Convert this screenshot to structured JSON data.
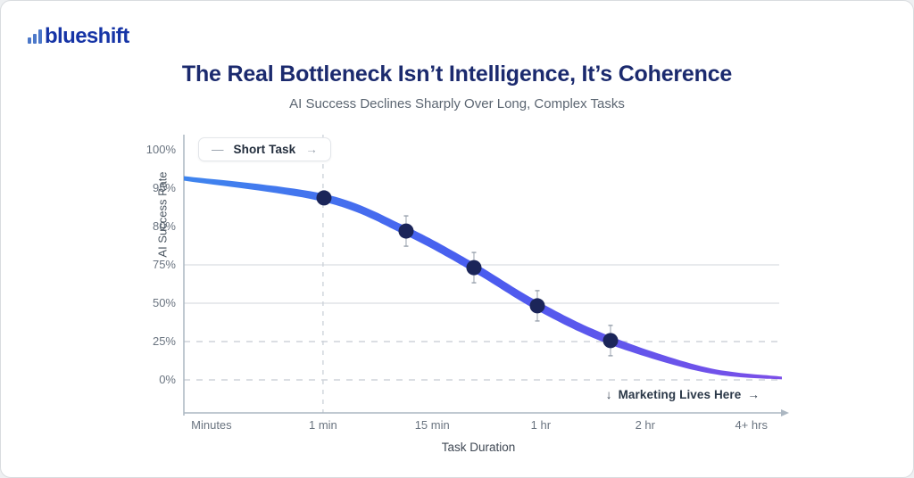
{
  "brand": {
    "name": "blueshift"
  },
  "header": {
    "title": "The Real Bottleneck Isn’t Intelligence, It’s Coherence",
    "subtitle": "AI Success Declines Sharply Over Long, Complex Tasks"
  },
  "chart_data": {
    "type": "line",
    "title": "The Real Bottleneck Isn’t Intelligence, It’s Coherence",
    "subtitle": "AI Success Declines Sharply Over Long, Complex Tasks",
    "xlabel": "Task Duration",
    "ylabel": "AI Success Rate",
    "x_ticks": [
      {
        "label": "Minutes",
        "f": 0.046
      },
      {
        "label": "1 min",
        "f": 0.232
      },
      {
        "label": "15 min",
        "f": 0.414
      },
      {
        "label": "1 hr",
        "f": 0.595
      },
      {
        "label": "2 hr",
        "f": 0.769
      },
      {
        "label": "4+ hrs",
        "f": 0.946
      }
    ],
    "y_ticks": [
      {
        "label": "100%",
        "f": 0,
        "grid": "none"
      },
      {
        "label": "95%",
        "f": 0.1667,
        "grid": "none"
      },
      {
        "label": "80%",
        "f": 0.3333,
        "grid": "none"
      },
      {
        "label": "75%",
        "f": 0.5,
        "grid": "solid"
      },
      {
        "label": "50%",
        "f": 0.6667,
        "grid": "solid"
      },
      {
        "label": "25%",
        "f": 0.8333,
        "grid": "dashed"
      },
      {
        "label": "0%",
        "f": 1,
        "grid": "dashed"
      }
    ],
    "y_axis_note": "tick spacing is uniform although values (100,95,80,75,50,25,0) are nonlinear",
    "series": [
      {
        "name": "AI Success Rate",
        "points": [
          {
            "x_approx": "1 min",
            "success_pct": 92,
            "fx": 0.2336,
            "fy": 0.209,
            "error_bar": false
          },
          {
            "x_approx": "~10 min",
            "success_pct": 79,
            "fx": 0.3705,
            "fy": 0.353,
            "error_bar": true
          },
          {
            "x_approx": "~30 min",
            "success_pct": 73,
            "fx": 0.4836,
            "fy": 0.512,
            "error_bar": true
          },
          {
            "x_approx": "1 hr",
            "success_pct": 48,
            "fx": 0.5893,
            "fy": 0.678,
            "error_bar": true
          },
          {
            "x_approx": "~90 min",
            "success_pct": 25,
            "fx": 0.7113,
            "fy": 0.829,
            "error_bar": true
          }
        ]
      }
    ],
    "curve_anchors": [
      {
        "fx": 0,
        "fy": 0.124
      },
      {
        "fx": 0.2336,
        "fy": 0.209
      },
      {
        "fx": 0.3705,
        "fy": 0.353
      },
      {
        "fx": 0.4836,
        "fy": 0.512
      },
      {
        "fx": 0.5893,
        "fy": 0.678
      },
      {
        "fx": 0.7113,
        "fy": 0.829
      },
      {
        "fx": 0.8705,
        "fy": 0.957
      },
      {
        "fx": 0.997,
        "fy": 0.992
      }
    ],
    "short_task_divider_fx": 0.232,
    "legend": {
      "dash": "—",
      "label": "Short Task",
      "arrow": "→"
    },
    "annotation": {
      "down_arrow": "↓",
      "label": "Marketing Lives Here",
      "arrow": "→"
    },
    "colors": {
      "curve_start": "#3F85EE",
      "curve_mid": "#4A5CEF",
      "curve_end": "#7B4FE8",
      "point": "#1B2559",
      "grid_solid": "#D9DDE2",
      "grid_dashed": "#C5CBD2",
      "axis": "#ACB7C2",
      "divider": "#CBD1D8",
      "error_bar": "#98A1AC",
      "title": "#1B2A6E",
      "subtitle": "#5C6672",
      "tick_text": "#6A7480",
      "annotation_text": "#2B3848",
      "logo_text": "#1634A6",
      "logo_bars": "#4C78C9"
    }
  }
}
